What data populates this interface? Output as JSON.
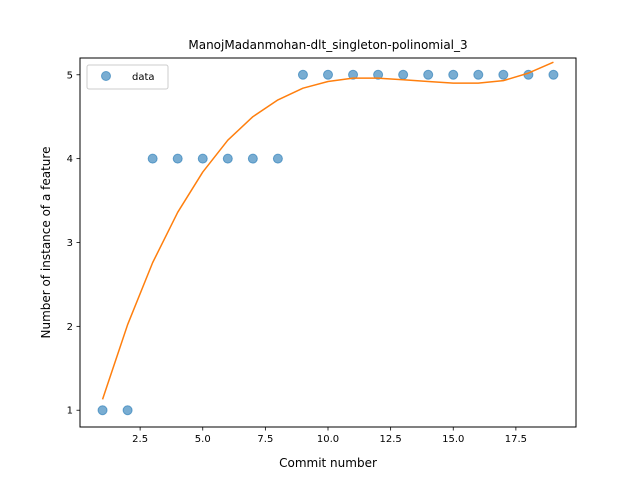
{
  "chart_data": {
    "type": "scatter",
    "title": "ManojMadanmohan-dlt_singleton-polinomial_3",
    "xlabel": "Commit number",
    "ylabel": "Number of instance of a feature",
    "xlim": [
      0.1,
      19.9
    ],
    "ylim": [
      0.8,
      5.2
    ],
    "xticks": [
      2.5,
      5.0,
      7.5,
      10.0,
      12.5,
      15.0,
      17.5
    ],
    "xtick_labels": [
      "2.5",
      "5.0",
      "7.5",
      "10.0",
      "12.5",
      "15.0",
      "17.5"
    ],
    "yticks": [
      1,
      2,
      3,
      4,
      5
    ],
    "ytick_labels": [
      "1",
      "2",
      "3",
      "4",
      "5"
    ],
    "grid": false,
    "legend_position": "upper-left",
    "series": [
      {
        "name": "data",
        "kind": "scatter",
        "color": "#1f77b4",
        "x": [
          1,
          2,
          3,
          4,
          5,
          6,
          7,
          8,
          9,
          10,
          11,
          12,
          13,
          14,
          15,
          16,
          17,
          18,
          19
        ],
        "y": [
          1,
          1,
          4,
          4,
          4,
          4,
          4,
          4,
          5,
          5,
          5,
          5,
          5,
          5,
          5,
          5,
          5,
          5,
          5
        ]
      },
      {
        "kind": "line",
        "color": "#ff7f0e",
        "x": [
          1,
          2,
          3,
          4,
          5,
          6,
          7,
          8,
          9,
          10,
          11,
          12,
          13,
          14,
          15,
          16,
          17,
          18,
          19
        ],
        "y": [
          1.13,
          2.02,
          2.76,
          3.36,
          3.84,
          4.22,
          4.5,
          4.7,
          4.84,
          4.92,
          4.96,
          4.96,
          4.94,
          4.92,
          4.9,
          4.9,
          4.93,
          5.02,
          5.15
        ]
      }
    ]
  }
}
